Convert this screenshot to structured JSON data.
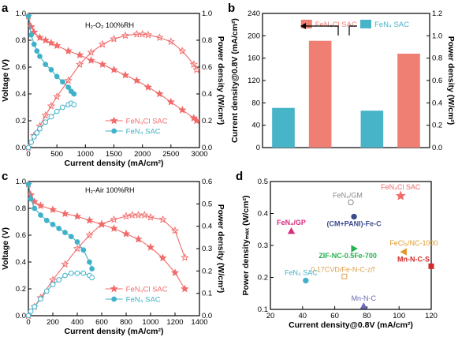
{
  "colors": {
    "red": "#f16b6b",
    "red_dark": "#d94a4a",
    "blue": "#3fb2c9",
    "blue_bar": "#47b4c8",
    "red_bar": "#f07f73"
  },
  "chart_data": [
    {
      "panel": "a",
      "type": "line",
      "annotation": "H₂-O₂ 100%RH",
      "xlabel": "Current density (mA/cm²)",
      "ylabel": "Voltage (V)",
      "y2label": "Power density (W/cm²)",
      "xlim": [
        0,
        3000
      ],
      "ylim": [
        0,
        1.0
      ],
      "y2lim": [
        0,
        1.0
      ],
      "xticks": [
        0,
        500,
        1000,
        1500,
        2000,
        2500,
        3000
      ],
      "yticks": [
        0.0,
        0.2,
        0.4,
        0.6,
        0.8,
        1.0
      ],
      "y2ticks": [
        0.0,
        0.2,
        0.4,
        0.6,
        0.8,
        1.0
      ],
      "legend": [
        "FeN₄Cl SAC",
        "FeN₄ SAC"
      ],
      "series": [
        {
          "name": "FeN₄Cl SAC",
          "kind": "voltage",
          "x": [
            0,
            50,
            100,
            200,
            300,
            400,
            500,
            700,
            900,
            1100,
            1300,
            1500,
            1700,
            1900,
            2100,
            2300,
            2500,
            2700,
            2900,
            2950
          ],
          "y": [
            0.98,
            0.9,
            0.86,
            0.82,
            0.8,
            0.78,
            0.76,
            0.72,
            0.69,
            0.65,
            0.62,
            0.58,
            0.54,
            0.5,
            0.45,
            0.4,
            0.34,
            0.28,
            0.22,
            0.2
          ]
        },
        {
          "name": "FeN₄Cl SAC",
          "kind": "power",
          "x": [
            0,
            100,
            200,
            300,
            400,
            500,
            700,
            900,
            1100,
            1300,
            1500,
            1700,
            1900,
            2000,
            2100,
            2300,
            2500,
            2700,
            2900,
            2950
          ],
          "y": [
            0.0,
            0.09,
            0.16,
            0.24,
            0.31,
            0.38,
            0.5,
            0.62,
            0.71,
            0.77,
            0.81,
            0.835,
            0.845,
            0.845,
            0.84,
            0.82,
            0.79,
            0.72,
            0.62,
            0.58
          ]
        },
        {
          "name": "FeN₄ SAC",
          "kind": "voltage",
          "x": [
            0,
            50,
            100,
            150,
            200,
            300,
            400,
            500,
            600,
            700,
            750,
            800
          ],
          "y": [
            0.98,
            0.84,
            0.77,
            0.72,
            0.68,
            0.62,
            0.58,
            0.53,
            0.49,
            0.45,
            0.42,
            0.4
          ]
        },
        {
          "name": "FeN₄ SAC",
          "kind": "power",
          "x": [
            0,
            50,
            100,
            150,
            200,
            300,
            400,
            500,
            600,
            700,
            750,
            800
          ],
          "y": [
            0.0,
            0.04,
            0.08,
            0.11,
            0.14,
            0.19,
            0.23,
            0.27,
            0.3,
            0.32,
            0.33,
            0.32
          ]
        }
      ]
    },
    {
      "panel": "b",
      "type": "bar",
      "ylabel": "Current density@0.8V (mA/cm²)",
      "y2label": "Power density (W/cm²)",
      "ylim": [
        0,
        240
      ],
      "y2lim": [
        0,
        1.2
      ],
      "yticks": [
        0,
        40,
        80,
        120,
        160,
        200,
        240
      ],
      "y2ticks": [
        0.0,
        0.2,
        0.4,
        0.6,
        0.8,
        1.0,
        1.2
      ],
      "legend": [
        "FeN₄Cl SAC",
        "FeN₄ SAC"
      ],
      "bars": [
        {
          "group": "current",
          "name": "FeN₄ SAC",
          "value": 71
        },
        {
          "group": "current",
          "name": "FeN₄Cl SAC",
          "value": 191
        },
        {
          "group": "power",
          "name": "FeN₄ SAC",
          "value": 0.33
        },
        {
          "group": "power",
          "name": "FeN₄Cl SAC",
          "value": 0.84
        }
      ]
    },
    {
      "panel": "c",
      "type": "line",
      "annotation": "H₂-Air 100%RH",
      "xlabel": "Current density (mA/cm²)",
      "ylabel": "Voltage (V)",
      "y2label": "Power density (W/cm²)",
      "xlim": [
        0,
        1400
      ],
      "ylim": [
        0,
        1.0
      ],
      "y2lim": [
        0,
        0.6
      ],
      "xticks": [
        0,
        200,
        400,
        600,
        800,
        1000,
        1200,
        1400
      ],
      "yticks": [
        0.0,
        0.2,
        0.4,
        0.6,
        0.8,
        1.0
      ],
      "y2ticks": [
        0.0,
        0.1,
        0.2,
        0.3,
        0.4,
        0.5,
        0.6
      ],
      "legend": [
        "FeN₄Cl SAC",
        "FeN₄ SAC"
      ],
      "series": [
        {
          "name": "FeN₄Cl SAC",
          "kind": "voltage",
          "x": [
            0,
            20,
            50,
            100,
            200,
            300,
            400,
            500,
            600,
            700,
            800,
            900,
            1000,
            1100,
            1200,
            1280
          ],
          "y": [
            0.98,
            0.9,
            0.85,
            0.82,
            0.79,
            0.76,
            0.74,
            0.71,
            0.68,
            0.65,
            0.61,
            0.57,
            0.51,
            0.43,
            0.32,
            0.2
          ]
        },
        {
          "name": "FeN₄Cl SAC",
          "kind": "power",
          "x": [
            0,
            50,
            100,
            200,
            300,
            400,
            500,
            600,
            700,
            800,
            850,
            900,
            950,
            1000,
            1100,
            1200,
            1280
          ],
          "y": [
            0.0,
            0.04,
            0.08,
            0.16,
            0.23,
            0.3,
            0.36,
            0.41,
            0.43,
            0.445,
            0.45,
            0.45,
            0.45,
            0.44,
            0.43,
            0.38,
            0.26
          ]
        },
        {
          "name": "FeN₄ SAC",
          "kind": "voltage",
          "x": [
            0,
            20,
            50,
            100,
            150,
            200,
            250,
            300,
            350,
            400,
            450,
            500,
            520
          ],
          "y": [
            0.98,
            0.87,
            0.8,
            0.75,
            0.71,
            0.68,
            0.65,
            0.62,
            0.59,
            0.55,
            0.49,
            0.4,
            0.35
          ]
        },
        {
          "name": "FeN₄ SAC",
          "kind": "power",
          "x": [
            0,
            20,
            50,
            100,
            150,
            200,
            250,
            300,
            350,
            400,
            450,
            500,
            520
          ],
          "y": [
            0.0,
            0.02,
            0.04,
            0.075,
            0.11,
            0.14,
            0.16,
            0.18,
            0.19,
            0.19,
            0.19,
            0.18,
            0.17
          ]
        }
      ]
    },
    {
      "panel": "d",
      "type": "scatter",
      "xlabel": "Current density@0.8V (mA/cm²)",
      "ylabel": "Power densityₘₐₓ (W/cm²)",
      "xlim": [
        20,
        120
      ],
      "ylim": [
        0.1,
        0.5
      ],
      "xticks": [
        20,
        40,
        60,
        80,
        100,
        120
      ],
      "yticks": [
        0.1,
        0.2,
        0.3,
        0.4,
        0.5
      ],
      "points": [
        {
          "label": "FeN₄Cl SAC",
          "x": 101,
          "y": 0.455,
          "marker": "star",
          "color": "#f16b6b"
        },
        {
          "label": "FeN₄/GM",
          "x": 70,
          "y": 0.435,
          "marker": "circle-open",
          "color": "#888888"
        },
        {
          "label": "(CM+PANI)-Fe-C",
          "x": 72,
          "y": 0.39,
          "marker": "circle",
          "color": "#3c4a8c"
        },
        {
          "label": "FeN₄/GP",
          "x": 33,
          "y": 0.345,
          "marker": "triangle-up",
          "color": "#d82c82"
        },
        {
          "label": "FeCl₃/NC-1000",
          "x": 103,
          "y": 0.28,
          "marker": "triangle-left",
          "color": "#e09a2a"
        },
        {
          "label": "ZIF-NC-0.5Fe-700",
          "x": 72,
          "y": 0.29,
          "marker": "triangle-right",
          "color": "#22b14c"
        },
        {
          "label": "Mn-N-C-S",
          "x": 120,
          "y": 0.235,
          "marker": "square",
          "color": "#d22a2a"
        },
        {
          "label": "0.17CVD/Fe-N-C-z/f",
          "x": 66,
          "y": 0.203,
          "marker": "square-open",
          "color": "#e0a050"
        },
        {
          "label": "FeN₄ SAC",
          "x": 42,
          "y": 0.19,
          "marker": "circle",
          "color": "#3fb2c9"
        },
        {
          "label": "Mn-N-C",
          "x": 78,
          "y": 0.11,
          "marker": "triangle-up",
          "color": "#6a6ab0"
        }
      ]
    }
  ]
}
